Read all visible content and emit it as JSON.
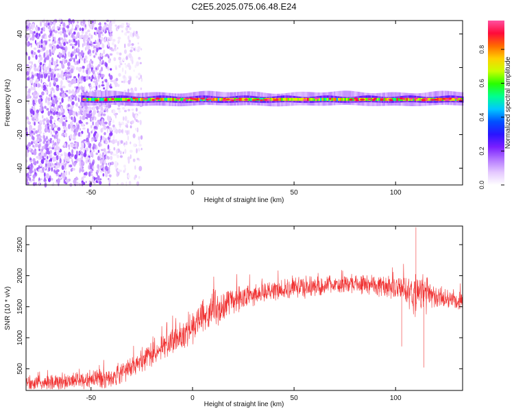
{
  "title": "C2E5.2025.075.06.48.E24",
  "chart_data": [
    {
      "type": "heatmap",
      "xlabel": "Height of straight line (km)",
      "ylabel": "Frequency (Hz)",
      "xlim": [
        -82,
        133
      ],
      "ylim": [
        -50,
        48
      ],
      "x_ticks": [
        -50,
        0,
        50,
        100
      ],
      "y_ticks": [
        -40,
        -20,
        0,
        20,
        40
      ],
      "colorbar": {
        "label": "Normalized spectral amplitude",
        "range": [
          0,
          0.97
        ],
        "ticks": [
          "0.0",
          "0.2",
          "0.4",
          "0.6",
          "0.8"
        ],
        "colormap": [
          "#ffffff",
          "#e4c8ff",
          "#b478ff",
          "#7a1fff",
          "#2a14ff",
          "#0050ff",
          "#00c8ff",
          "#00ff90",
          "#28ff00",
          "#c8ff00",
          "#ffd000",
          "#ff6a00",
          "#ff0a3a",
          "#ff50a0"
        ]
      },
      "features": [
        {
          "x_range": [
            -82,
            -40
          ],
          "frequency_range": [
            -50,
            48
          ],
          "amplitude": "0.05-0.2",
          "pattern": "dense noise"
        },
        {
          "x_range": [
            -40,
            -25
          ],
          "frequency_range": [
            -50,
            48
          ],
          "amplitude": "0.02-0.1",
          "pattern": "sparse noise"
        },
        {
          "x_range": [
            -55,
            133
          ],
          "frequency_center": 1,
          "frequency_halfwidth": 2.5,
          "amplitude": "0.6-0.95",
          "pattern": "narrow band near 0 Hz"
        }
      ],
      "grid": false,
      "legend": "colorbar-right"
    },
    {
      "type": "line",
      "xlabel": "Height of straight line (km)",
      "ylabel": "SNR (10 * v/v)",
      "xlim": [
        -82,
        133
      ],
      "ylim": [
        150,
        2800
      ],
      "x_ticks": [
        -50,
        0,
        50,
        100
      ],
      "y_ticks": [
        500,
        1000,
        1500,
        2000,
        2500
      ],
      "color": "#f03232",
      "series_envelope": {
        "x": [
          -82,
          -60,
          -40,
          -30,
          -20,
          -10,
          -5,
          0,
          5,
          10,
          15,
          20,
          25,
          30,
          40,
          50,
          60,
          70,
          80,
          90,
          100,
          105,
          110,
          115,
          120,
          125,
          133
        ],
        "mean": [
          250,
          290,
          350,
          520,
          750,
          950,
          1050,
          1150,
          1350,
          1450,
          1500,
          1600,
          1650,
          1700,
          1750,
          1800,
          1830,
          1850,
          1870,
          1850,
          1800,
          1750,
          1720,
          1680,
          1650,
          1630,
          1600
        ],
        "spread": [
          150,
          170,
          200,
          220,
          260,
          260,
          280,
          320,
          340,
          360,
          300,
          260,
          230,
          200,
          200,
          200,
          200,
          190,
          190,
          200,
          220,
          300,
          450,
          350,
          220,
          200,
          200
        ]
      },
      "notable_points": [
        {
          "x": 110,
          "y": 2780
        },
        {
          "x": 114,
          "y": 520
        },
        {
          "x": 103,
          "y": 860
        }
      ],
      "grid": false
    }
  ]
}
